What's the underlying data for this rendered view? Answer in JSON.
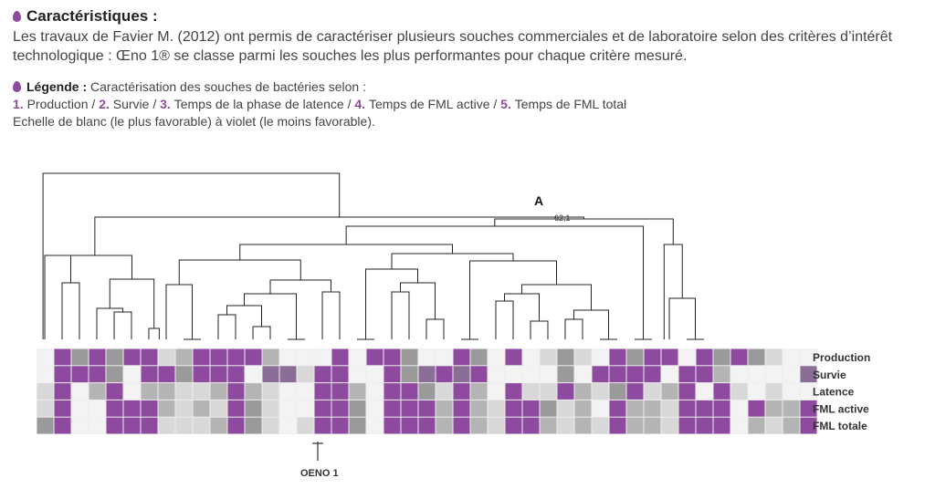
{
  "intro": {
    "heading": "Caractéristiques :",
    "text": "Les travaux de Favier M. (2012) ont permis de caractériser plusieurs souches commerciales et de laboratoire selon des critères d’intérêt technologique : Œno 1® se classe parmi les souches les plus performantes pour chaque critère mesuré."
  },
  "legend": {
    "heading": "Légende :",
    "intro": "Caractérisation des souches de bactéries selon :",
    "items": [
      {
        "num": "1.",
        "label": "Production"
      },
      {
        "num": "2.",
        "label": "Survie"
      },
      {
        "num": "3.",
        "label": "Temps de la phase de latence"
      },
      {
        "num": "4.",
        "label": "Temps de FML active"
      },
      {
        "num": "5.",
        "label": "Temps de FML total"
      }
    ],
    "separator": " / ",
    "scale": "Echelle de blanc (le plus favorable) à violet (le moins favorable)."
  },
  "figure": {
    "cluster_label": "A",
    "node_value": "62,1",
    "highlight_label": "OENO 1",
    "row_labels": [
      "Production",
      "Survie",
      "Latence",
      "FML active",
      "FML totale"
    ],
    "colors": {
      "level0": "#f3f3f3",
      "level1": "#d8d8d8",
      "level2": "#b4b4b4",
      "level3": "#9a9a9a",
      "level4": "#8a6e97",
      "level5": "#8e4a9e"
    },
    "heatmap": [
      [
        0,
        5,
        3,
        5,
        3,
        5,
        5,
        1,
        2,
        5,
        5,
        5,
        5,
        2,
        0,
        0,
        0,
        5,
        0,
        5,
        5,
        3,
        0,
        0,
        5,
        3,
        0,
        5,
        0,
        1,
        3,
        1,
        0,
        5,
        3,
        5,
        5,
        0,
        5,
        3,
        5,
        3,
        1,
        0,
        0
      ],
      [
        0,
        5,
        5,
        5,
        3,
        0,
        5,
        5,
        3,
        5,
        5,
        5,
        0,
        4,
        4,
        1,
        5,
        5,
        0,
        0,
        5,
        3,
        4,
        5,
        4,
        5,
        0,
        0,
        0,
        0,
        3,
        0,
        5,
        5,
        5,
        5,
        0,
        5,
        5,
        2,
        0,
        0,
        0,
        0,
        4
      ],
      [
        1,
        5,
        0,
        2,
        5,
        0,
        2,
        2,
        1,
        1,
        2,
        5,
        2,
        1,
        0,
        0,
        5,
        5,
        2,
        0,
        5,
        5,
        3,
        1,
        5,
        2,
        0,
        5,
        1,
        1,
        5,
        2,
        1,
        3,
        5,
        1,
        2,
        5,
        0,
        5,
        1,
        0,
        1,
        0,
        0
      ],
      [
        1,
        5,
        0,
        0,
        5,
        5,
        5,
        2,
        1,
        2,
        1,
        5,
        3,
        1,
        0,
        0,
        5,
        5,
        3,
        0,
        5,
        5,
        5,
        2,
        5,
        2,
        1,
        5,
        5,
        3,
        1,
        2,
        0,
        5,
        2,
        2,
        1,
        5,
        5,
        5,
        0,
        5,
        2,
        2,
        5
      ],
      [
        3,
        5,
        0,
        0,
        5,
        5,
        5,
        1,
        1,
        1,
        2,
        5,
        3,
        1,
        0,
        1,
        5,
        5,
        3,
        0,
        5,
        5,
        5,
        2,
        5,
        2,
        1,
        5,
        5,
        2,
        1,
        2,
        1,
        5,
        2,
        2,
        1,
        5,
        5,
        5,
        0,
        2,
        1,
        2,
        5
      ]
    ]
  }
}
